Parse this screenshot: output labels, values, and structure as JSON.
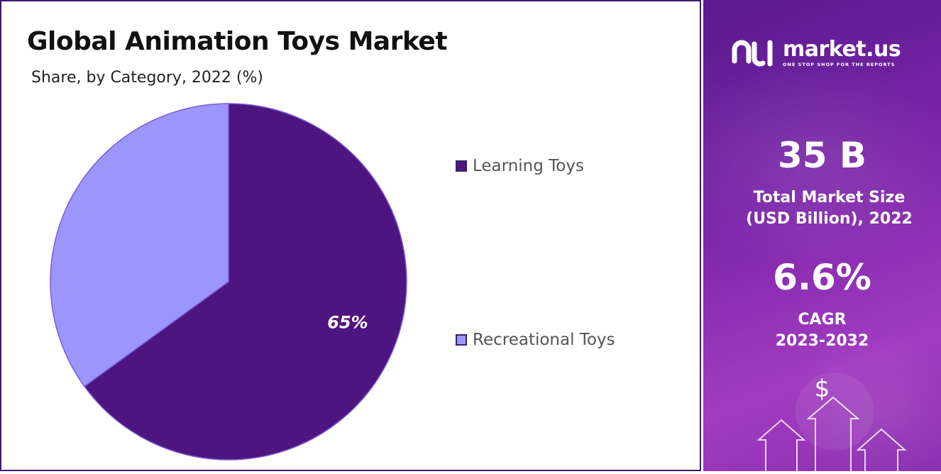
{
  "chart_data": {
    "type": "pie",
    "title": "Global Animation Toys Market",
    "subtitle": "Share, by Category, 2022 (%)",
    "categories": [
      "Learning Toys",
      "Recreational Toys"
    ],
    "values": [
      65,
      35
    ],
    "data_labels": [
      "65%",
      ""
    ],
    "legend_position": "right",
    "colors": [
      "#4e1580",
      "#9b96fb"
    ]
  },
  "brand": {
    "name": "market.us",
    "tagline": "ONE STOP SHOP FOR THE REPORTS"
  },
  "stats": {
    "market_size_value": "35 B",
    "market_size_label_1": "Total Market Size",
    "market_size_label_2": "(USD Billion), 2022",
    "cagr_value": "6.6%",
    "cagr_label_1": "CAGR",
    "cagr_label_2": "2023-2032",
    "currency_symbol": "$"
  },
  "theme": {
    "panel_border": "#3a1d6e",
    "accent": "#7a25a8"
  }
}
